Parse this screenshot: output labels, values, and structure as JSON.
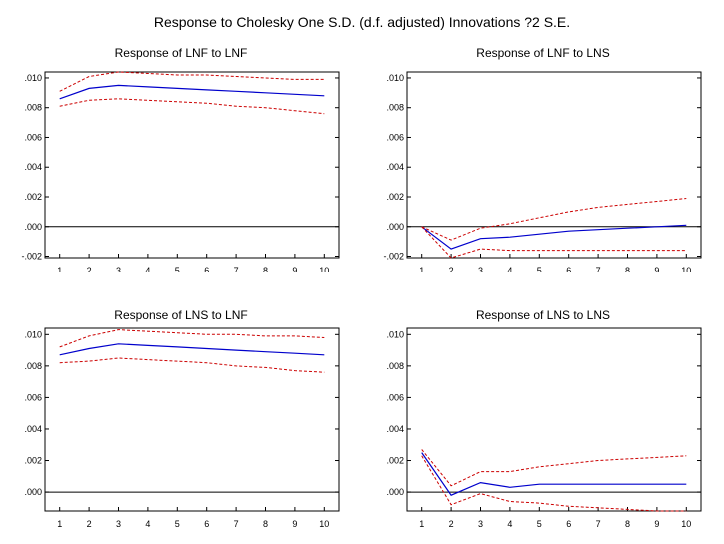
{
  "title": "Response to Cholesky One S.D. (d.f. adjusted) Innovations ?2 S.E.",
  "colors": {
    "response": "#0000cc",
    "bands": "#cc0000",
    "zero": "#000000"
  },
  "chart_data": [
    {
      "type": "line",
      "title": "Response of LNF to LNF",
      "x": [
        1,
        2,
        3,
        4,
        5,
        6,
        7,
        8,
        9,
        10
      ],
      "ylim": [
        -0.0021,
        0.0104
      ],
      "yticks": [
        ".010",
        ".008",
        ".006",
        ".004",
        ".002",
        ".000",
        "-.002"
      ],
      "series": [
        {
          "role": "response",
          "values": [
            0.0086,
            0.0093,
            0.0095,
            0.0094,
            0.0093,
            0.0092,
            0.0091,
            0.009,
            0.0089,
            0.0088
          ]
        },
        {
          "role": "upper",
          "values": [
            0.0091,
            0.0101,
            0.0104,
            0.0103,
            0.0102,
            0.0102,
            0.0101,
            0.01,
            0.0099,
            0.0099
          ]
        },
        {
          "role": "lower",
          "values": [
            0.0081,
            0.0085,
            0.0086,
            0.0085,
            0.0084,
            0.0083,
            0.0081,
            0.008,
            0.0078,
            0.0076
          ]
        }
      ]
    },
    {
      "type": "line",
      "title": "Response of LNF to LNS",
      "x": [
        1,
        2,
        3,
        4,
        5,
        6,
        7,
        8,
        9,
        10
      ],
      "ylim": [
        -0.0021,
        0.0104
      ],
      "yticks": [
        ".010",
        ".008",
        ".006",
        ".004",
        ".002",
        ".000",
        "-.002"
      ],
      "series": [
        {
          "role": "response",
          "values": [
            0.0,
            -0.0015,
            -0.0008,
            -0.0007,
            -0.0005,
            -0.0003,
            -0.0002,
            -0.0001,
            0.0,
            0.0001
          ]
        },
        {
          "role": "upper",
          "values": [
            0.0,
            -0.0009,
            -0.0001,
            0.0002,
            0.0006,
            0.001,
            0.0013,
            0.0015,
            0.0017,
            0.0019
          ]
        },
        {
          "role": "lower",
          "values": [
            0.0,
            -0.0021,
            -0.0015,
            -0.0016,
            -0.0016,
            -0.0016,
            -0.0016,
            -0.0016,
            -0.0016,
            -0.0016
          ]
        }
      ]
    },
    {
      "type": "line",
      "title": "Response of LNS to LNF",
      "x": [
        1,
        2,
        3,
        4,
        5,
        6,
        7,
        8,
        9,
        10
      ],
      "ylim": [
        -0.0012,
        0.0104
      ],
      "yticks": [
        ".010",
        ".008",
        ".006",
        ".004",
        ".002",
        ".000"
      ],
      "series": [
        {
          "role": "response",
          "values": [
            0.0087,
            0.0091,
            0.0094,
            0.0093,
            0.0092,
            0.0091,
            0.009,
            0.0089,
            0.0088,
            0.0087
          ]
        },
        {
          "role": "upper",
          "values": [
            0.0092,
            0.0099,
            0.0103,
            0.0102,
            0.0101,
            0.01,
            0.01,
            0.0099,
            0.0099,
            0.0098
          ]
        },
        {
          "role": "lower",
          "values": [
            0.0082,
            0.0083,
            0.0085,
            0.0084,
            0.0083,
            0.0082,
            0.008,
            0.0079,
            0.0077,
            0.0076
          ]
        }
      ]
    },
    {
      "type": "line",
      "title": "Response of LNS to LNS",
      "x": [
        1,
        2,
        3,
        4,
        5,
        6,
        7,
        8,
        9,
        10
      ],
      "ylim": [
        -0.0012,
        0.0104
      ],
      "yticks": [
        ".010",
        ".008",
        ".006",
        ".004",
        ".002",
        ".000"
      ],
      "series": [
        {
          "role": "response",
          "values": [
            0.0025,
            -0.0002,
            0.0006,
            0.0003,
            0.0005,
            0.0005,
            0.0005,
            0.0005,
            0.0005,
            0.0005
          ]
        },
        {
          "role": "upper",
          "values": [
            0.0027,
            0.0004,
            0.0013,
            0.0013,
            0.0016,
            0.0018,
            0.002,
            0.0021,
            0.0022,
            0.0023
          ]
        },
        {
          "role": "lower",
          "values": [
            0.0023,
            -0.0008,
            -0.0001,
            -0.0006,
            -0.0007,
            -0.0009,
            -0.001,
            -0.0011,
            -0.0012,
            -0.0012
          ]
        }
      ]
    }
  ]
}
